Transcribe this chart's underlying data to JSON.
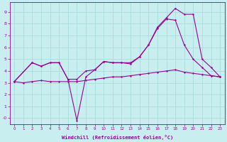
{
  "background_color": "#c8eef0",
  "grid_color": "#aadddd",
  "line_color": "#990099",
  "xlabel": "Windchill (Refroidissement éolien,°C)",
  "ylim": [
    -0.5,
    9.8
  ],
  "xlim": [
    -0.5,
    23.5
  ],
  "yticks": [
    0,
    1,
    2,
    3,
    4,
    5,
    6,
    7,
    8,
    9
  ],
  "xticks": [
    0,
    1,
    2,
    3,
    4,
    5,
    6,
    7,
    8,
    9,
    10,
    11,
    12,
    13,
    14,
    15,
    16,
    17,
    18,
    19,
    20,
    21,
    22,
    23
  ],
  "line_flat": {
    "x": [
      0,
      1,
      2,
      3,
      4,
      5,
      6,
      7,
      8,
      9,
      10,
      11,
      12,
      13,
      14,
      15,
      16,
      17,
      18,
      19,
      20,
      21,
      22,
      23
    ],
    "y": [
      3.1,
      3.0,
      3.1,
      3.2,
      3.1,
      3.1,
      3.1,
      3.1,
      3.2,
      3.3,
      3.4,
      3.5,
      3.5,
      3.6,
      3.7,
      3.8,
      3.9,
      4.0,
      4.1,
      3.9,
      3.8,
      3.7,
      3.6,
      3.5
    ]
  },
  "line_mid": {
    "x": [
      0,
      2,
      3,
      4,
      5,
      6,
      7,
      8,
      9,
      10,
      11,
      12,
      13,
      14,
      15,
      16,
      17,
      18,
      19,
      20,
      21,
      22,
      23
    ],
    "y": [
      3.1,
      4.7,
      4.4,
      4.7,
      4.7,
      3.3,
      3.3,
      4.0,
      4.1,
      4.8,
      4.7,
      4.7,
      4.6,
      5.2,
      6.2,
      7.6,
      8.4,
      8.3,
      6.2,
      5.0,
      4.3,
      3.6,
      3.5
    ]
  },
  "line_spike": {
    "x": [
      0,
      2,
      3,
      4,
      5,
      6,
      7,
      8,
      9,
      10,
      11,
      12,
      13,
      14,
      15,
      16,
      17,
      18,
      19,
      20,
      21,
      22,
      23
    ],
    "y": [
      3.1,
      4.7,
      4.4,
      4.7,
      4.7,
      3.3,
      -0.2,
      3.5,
      4.1,
      4.8,
      4.7,
      4.7,
      4.7,
      5.2,
      6.2,
      7.7,
      8.5,
      9.3,
      8.8,
      8.8,
      5.0,
      4.3,
      3.5
    ]
  }
}
